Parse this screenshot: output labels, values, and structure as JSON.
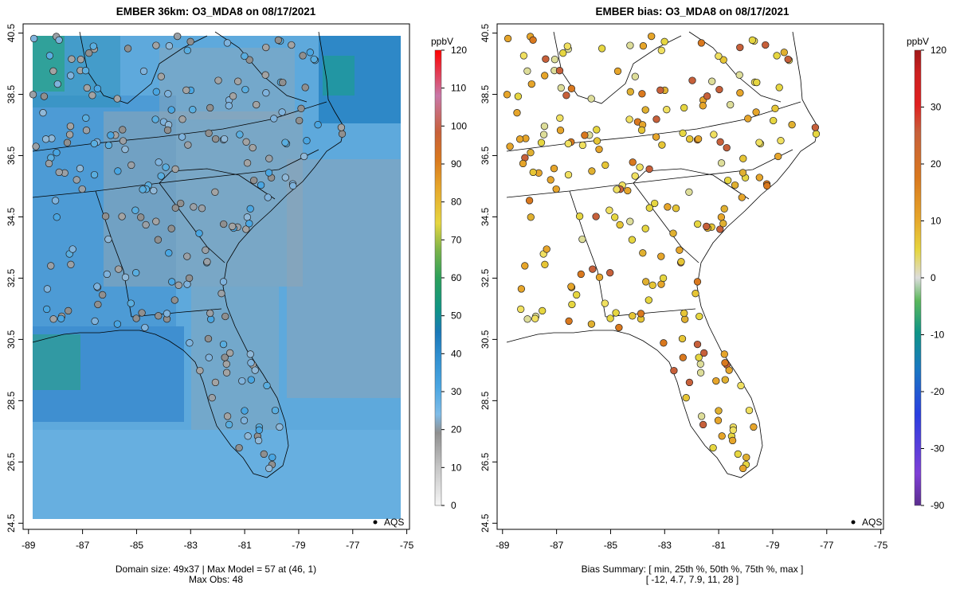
{
  "chart_data": [
    {
      "type": "map",
      "title": "EMBER 36km: O3_MDA8 on 08/17/2021",
      "xlim": [
        -89.2,
        -74.9
      ],
      "ylim": [
        24.3,
        40.8
      ],
      "xticks": [
        "-89",
        "-87",
        "-85",
        "-83",
        "-81",
        "-79",
        "-77",
        "-75"
      ],
      "yticks": [
        "40.5",
        "38.5",
        "36.5",
        "34.5",
        "32.5",
        "30.5",
        "28.5",
        "26.5",
        "24.5"
      ],
      "colorbar": {
        "unit": "ppbV",
        "ticks": [
          "0",
          "10",
          "20",
          "30",
          "40",
          "50",
          "60",
          "70",
          "80",
          "90",
          "100",
          "110",
          "120"
        ],
        "range": [
          0,
          120
        ]
      },
      "legend": {
        "symbol": "filled-circle",
        "label": "AQS",
        "position": "bottom-right"
      },
      "footer": [
        "Domain size: 49x37 | Max Model = 57 at (46, 1)",
        "Max Obs: 48"
      ]
    },
    {
      "type": "map",
      "title": "EMBER bias: O3_MDA8 on 08/17/2021",
      "xlim": [
        -89.2,
        -74.9
      ],
      "ylim": [
        24.3,
        40.8
      ],
      "xticks": [
        "-89",
        "-87",
        "-85",
        "-83",
        "-81",
        "-79",
        "-77",
        "-75"
      ],
      "yticks": [
        "40.5",
        "38.5",
        "36.5",
        "34.5",
        "32.5",
        "30.5",
        "28.5",
        "26.5",
        "24.5"
      ],
      "colorbar": {
        "unit": "ppbV",
        "ticks": [
          "-90",
          "-30",
          "-20",
          "-10",
          "0",
          "10",
          "20",
          "30",
          "120"
        ],
        "range": [
          -90,
          120
        ]
      },
      "legend": {
        "symbol": "filled-circle",
        "label": "AQS",
        "position": "bottom-right"
      },
      "footer": [
        "Bias Summary: [ min, 25th %, 50th %, 75th %, max ]",
        "[ -12,   4.7,   7.9,   11,   28 ]"
      ],
      "bias_summary": {
        "min": -12,
        "p25": 4.7,
        "p50": 7.9,
        "p75": 11,
        "max": 28
      }
    }
  ]
}
